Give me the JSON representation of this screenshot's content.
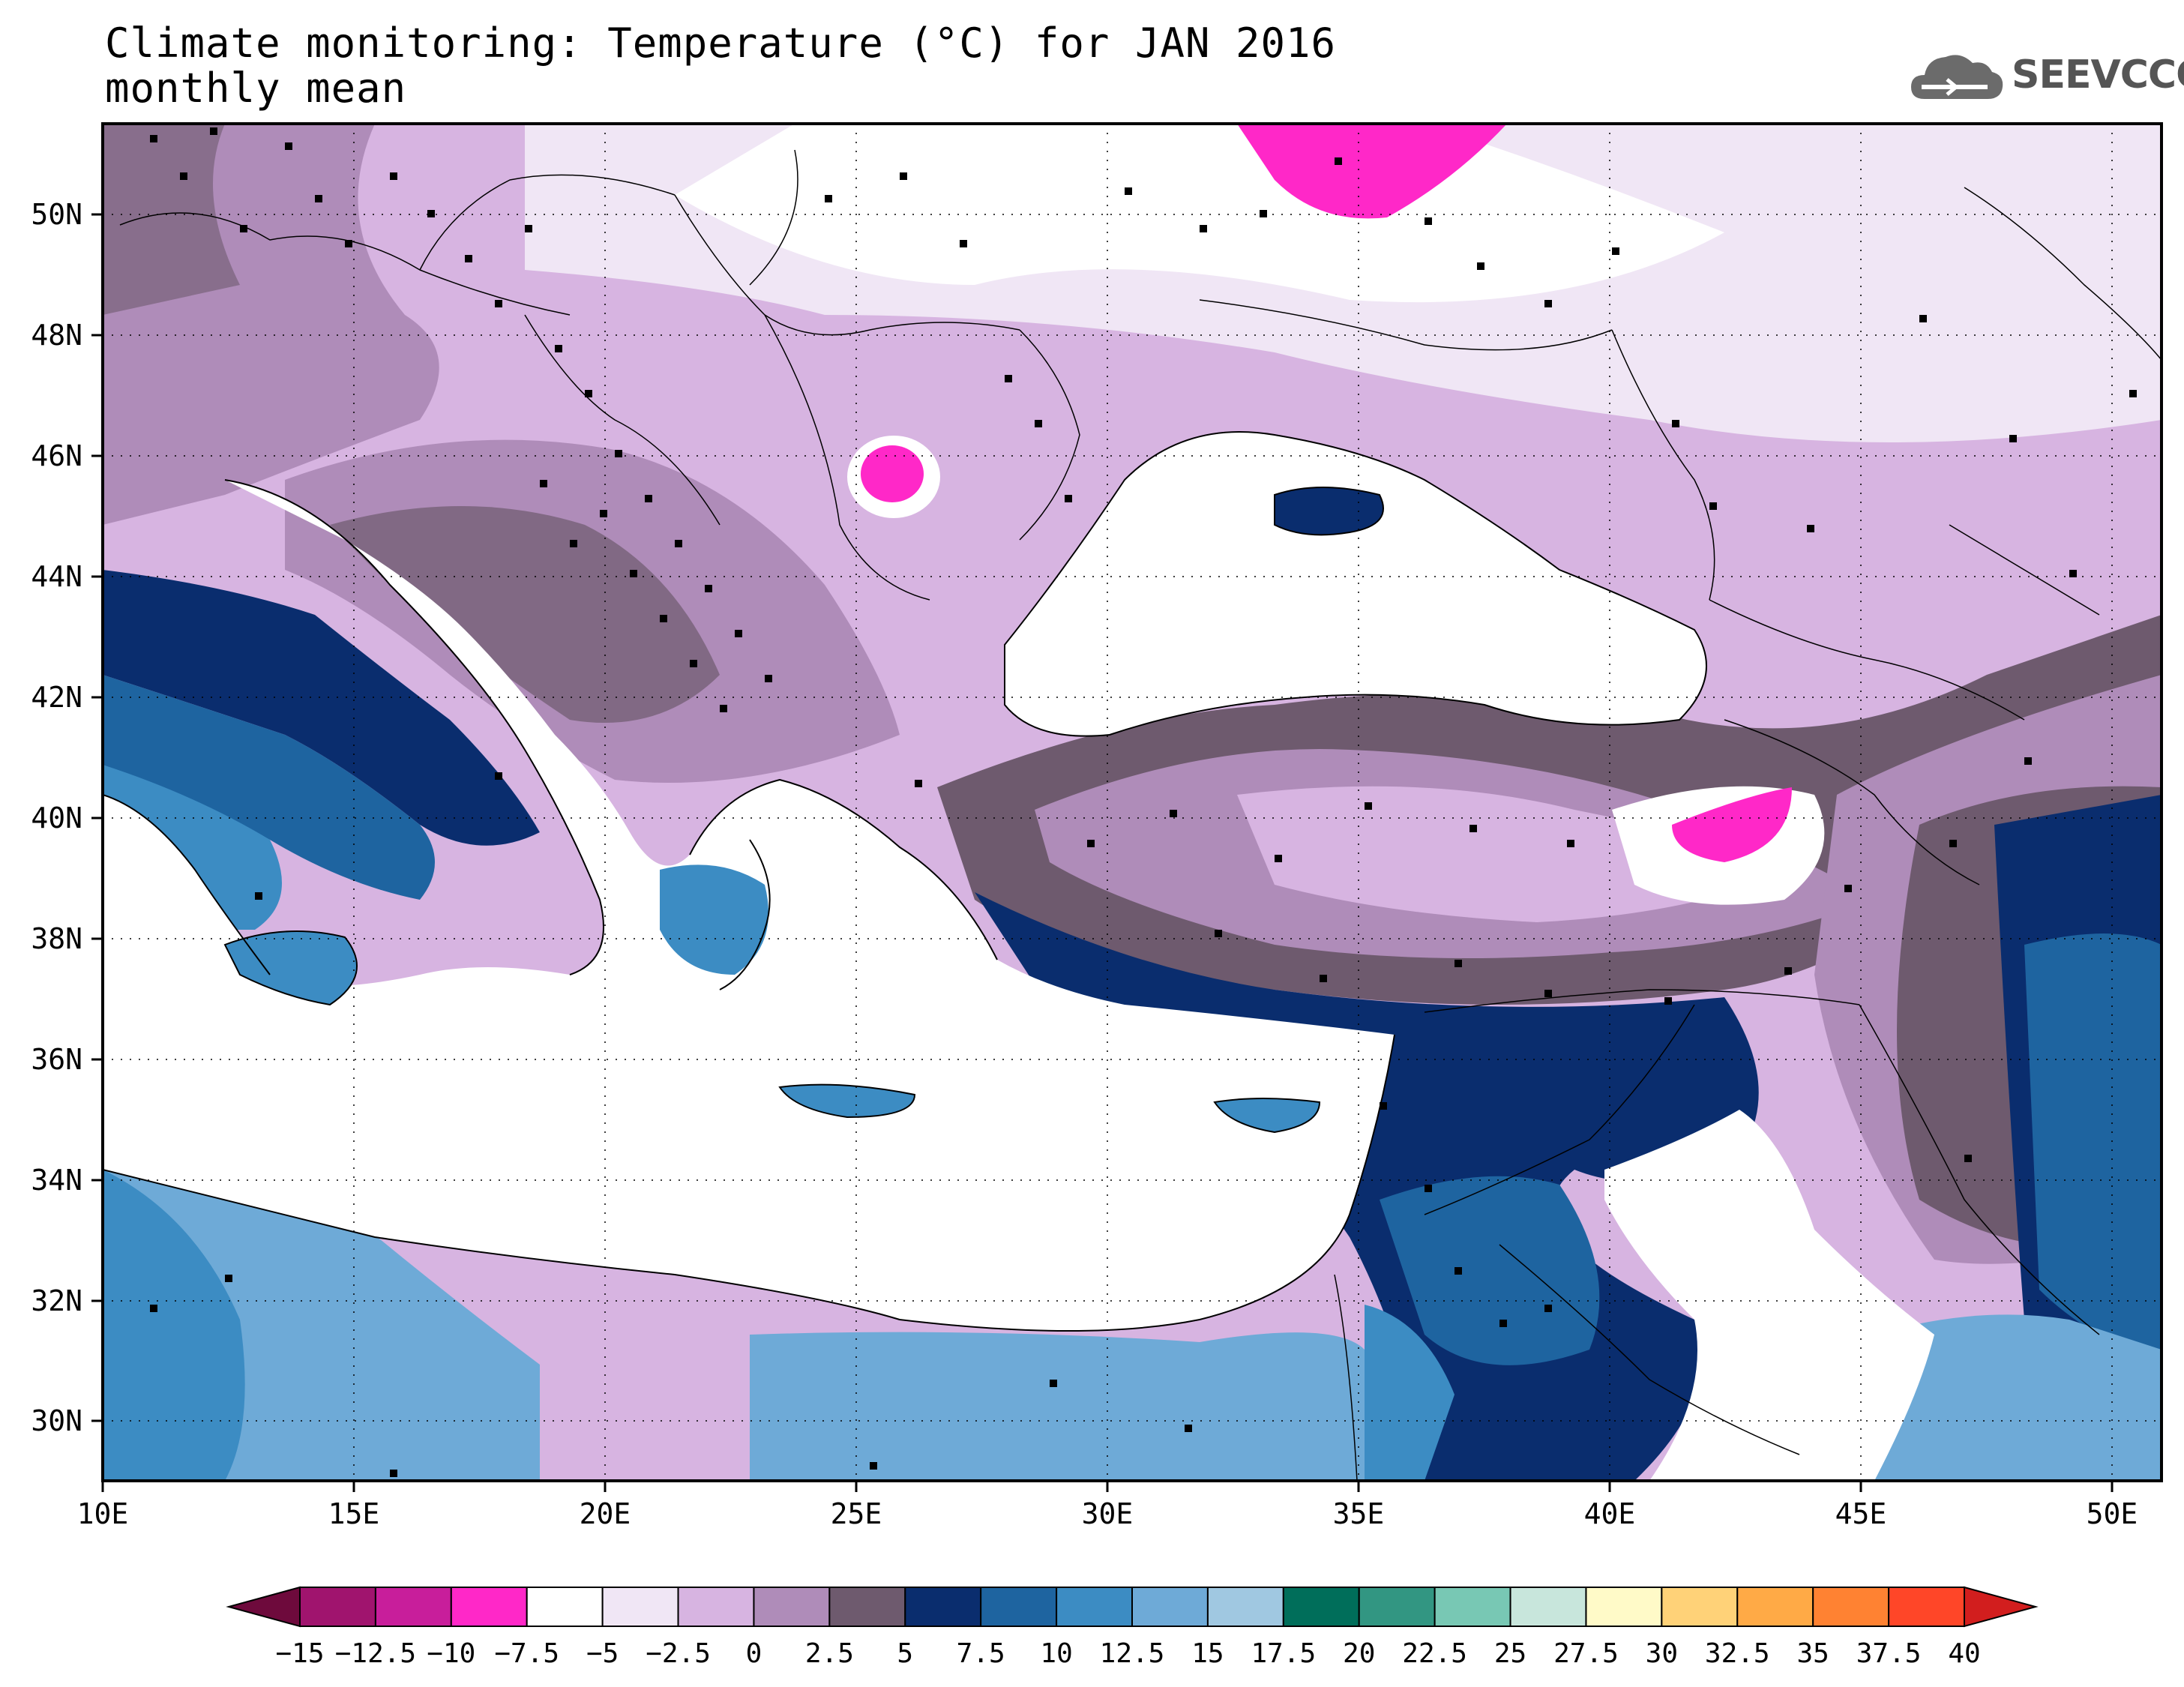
{
  "title": {
    "line1": "Climate monitoring: Temperature (°C) for JAN 2016",
    "line2": "monthly mean"
  },
  "logo": {
    "text": "SEEVCCC",
    "icon": "cloud-icon"
  },
  "map": {
    "lon_range": [
      10,
      51
    ],
    "lat_range": [
      29,
      51.5
    ],
    "lon_ticks": [
      "10E",
      "15E",
      "20E",
      "25E",
      "30E",
      "35E",
      "40E",
      "45E",
      "50E"
    ],
    "lat_ticks": [
      "30N",
      "32N",
      "34N",
      "36N",
      "38N",
      "40N",
      "42N",
      "44N",
      "46N",
      "48N",
      "50N"
    ],
    "grid": "dotted"
  },
  "colorbar": {
    "labels": [
      "-15",
      "-12.5",
      "-10",
      "-7.5",
      "-5",
      "-2.5",
      "0",
      "2.5",
      "5",
      "7.5",
      "10",
      "12.5",
      "15",
      "17.5",
      "20",
      "22.5",
      "25",
      "27.5",
      "30",
      "32.5",
      "35",
      "37.5",
      "40"
    ],
    "colors": [
      "#6e0a3c",
      "#a0146e",
      "#c81e9b",
      "#ff28c8",
      "#ffffff",
      "#f0e6f5",
      "#d7b4e1",
      "#af8cb9",
      "#6e5a6e",
      "#0a2d6e",
      "#1e64a0",
      "#3c8cc3",
      "#6eaad7",
      "#a0c8e1",
      "#006e5a",
      "#329682",
      "#78c8b4",
      "#c8e6dc",
      "#fffac8",
      "#ffd278",
      "#ffaa46",
      "#ff8232",
      "#ff4628",
      "#d21e1e"
    ]
  }
}
